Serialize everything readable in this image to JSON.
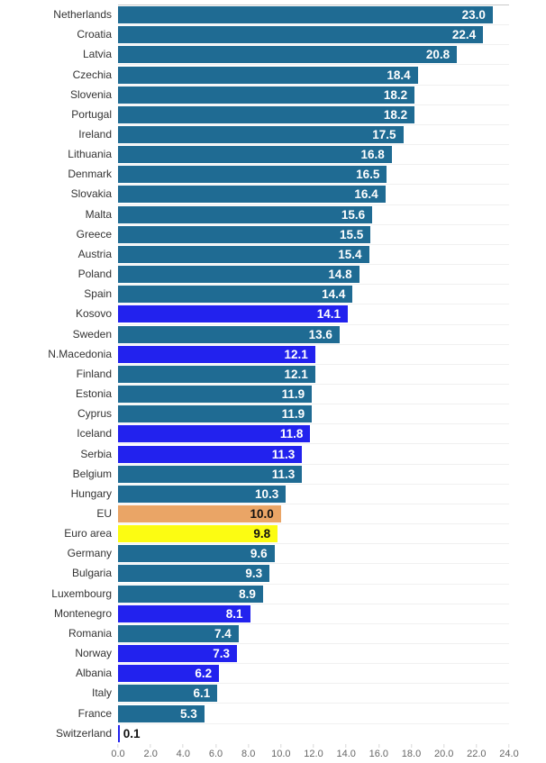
{
  "chart_data": {
    "type": "bar",
    "orientation": "horizontal",
    "categories": [
      "Netherlands",
      "Croatia",
      "Latvia",
      "Czechia",
      "Slovenia",
      "Portugal",
      "Ireland",
      "Lithuania",
      "Denmark",
      "Slovakia",
      "Malta",
      "Greece",
      "Austria",
      "Poland",
      "Spain",
      "Kosovo",
      "Sweden",
      "N.Macedonia",
      "Finland",
      "Estonia",
      "Cyprus",
      "Iceland",
      "Serbia",
      "Belgium",
      "Hungary",
      "EU",
      "Euro area",
      "Germany",
      "Bulgaria",
      "Luxembourg",
      "Montenegro",
      "Romania",
      "Norway",
      "Albania",
      "Italy",
      "France",
      "Switzerland"
    ],
    "values": [
      23.0,
      22.4,
      20.8,
      18.4,
      18.2,
      18.2,
      17.5,
      16.8,
      16.5,
      16.4,
      15.6,
      15.5,
      15.4,
      14.8,
      14.4,
      14.1,
      13.6,
      12.1,
      12.1,
      11.9,
      11.9,
      11.8,
      11.3,
      11.3,
      10.3,
      10.0,
      9.8,
      9.6,
      9.3,
      8.9,
      8.1,
      7.4,
      7.3,
      6.2,
      6.1,
      5.3,
      0.1
    ],
    "bar_colors": [
      "teal",
      "teal",
      "teal",
      "teal",
      "teal",
      "teal",
      "teal",
      "teal",
      "teal",
      "teal",
      "teal",
      "teal",
      "teal",
      "teal",
      "teal",
      "blue",
      "teal",
      "blue",
      "teal",
      "teal",
      "teal",
      "blue",
      "blue",
      "teal",
      "teal",
      "orange",
      "yellow",
      "teal",
      "teal",
      "teal",
      "blue",
      "teal",
      "blue",
      "blue",
      "teal",
      "teal",
      "blue"
    ],
    "palette": {
      "teal": "#1f6b93",
      "blue": "#2222ee",
      "orange": "#eaa566",
      "yellow": "#fcfc12"
    },
    "value_label_color_inside_default": "#ffffff",
    "value_label_color_on_orange_yellow": "#111111",
    "value_label_color_outside": "#111111",
    "value_decimals": 1,
    "xlabel": "",
    "ylabel": "",
    "title": "",
    "xlim": [
      0,
      24
    ],
    "x_ticks": [
      "0.0",
      "2.0",
      "4.0",
      "6.0",
      "8.0",
      "10.0",
      "12.0",
      "14.0",
      "16.0",
      "18.0",
      "20.0",
      "22.0",
      "24.0"
    ],
    "grid": "horizontal row separator lines only",
    "legend": "none"
  }
}
